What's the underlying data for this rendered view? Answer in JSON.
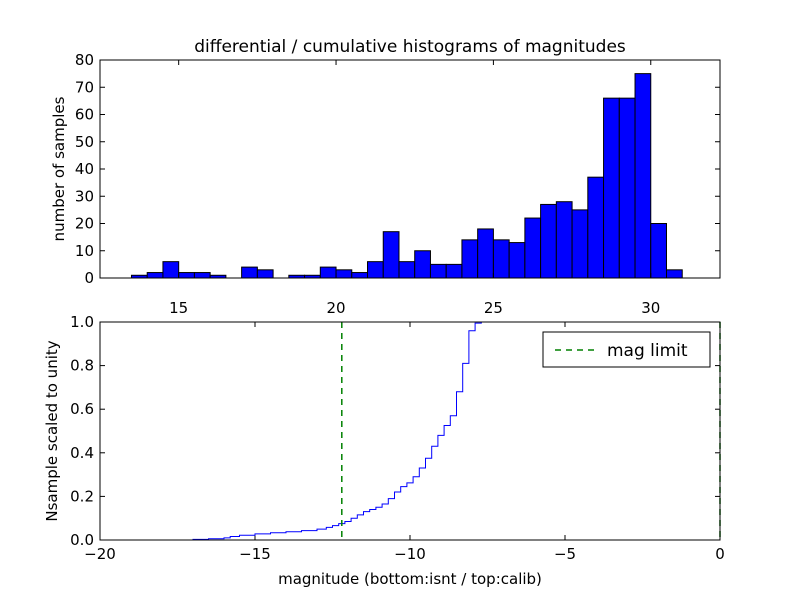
{
  "chart_data": [
    {
      "type": "bar",
      "title": "differential / cumulative histograms of magnitudes",
      "xlabel": "",
      "ylabel": "number of samples",
      "xlim": [
        12.5,
        32.2
      ],
      "ylim": [
        0,
        80
      ],
      "xticks": [
        15,
        20,
        25,
        30
      ],
      "yticks": [
        0,
        10,
        20,
        30,
        40,
        50,
        60,
        70,
        80
      ],
      "bin_width": 0.5,
      "bin_starts": [
        13.5,
        14.0,
        14.5,
        15.0,
        15.5,
        16.0,
        16.5,
        17.0,
        17.5,
        18.0,
        18.5,
        19.0,
        19.5,
        20.0,
        20.5,
        21.0,
        21.5,
        22.0,
        22.5,
        23.0,
        23.5,
        24.0,
        24.5,
        25.0,
        25.5,
        26.0,
        26.5,
        27.0,
        27.5,
        28.0,
        28.5,
        29.0,
        29.5,
        30.0,
        30.5
      ],
      "values": [
        1,
        2,
        6,
        2,
        2,
        1,
        0,
        4,
        3,
        0,
        1,
        1,
        4,
        3,
        2,
        6,
        17,
        6,
        10,
        5,
        5,
        14,
        18,
        14,
        13,
        22,
        27,
        28,
        25,
        37,
        66,
        66,
        75,
        20,
        3
      ],
      "bar_color": "#0000ff",
      "grid": false
    },
    {
      "type": "line",
      "xlabel": "magnitude (bottom:isnt / top:calib)",
      "ylabel": "Nsample scaled to unity",
      "xlim": [
        -20,
        0
      ],
      "ylim": [
        0,
        1.0
      ],
      "xticks": [
        -20,
        -15,
        -10,
        -5,
        0
      ],
      "xtick_labels": [
        "−20",
        "−15",
        "−10",
        "−5",
        "0"
      ],
      "yticks": [
        0.0,
        0.2,
        0.4,
        0.6,
        0.8,
        1.0
      ],
      "ytick_labels": [
        "0.0",
        "0.2",
        "0.4",
        "0.6",
        "0.8",
        "1.0"
      ],
      "step_x": [
        -18.5,
        -17.0,
        -16.5,
        -16.0,
        -15.8,
        -15.5,
        -15.0,
        -14.5,
        -14.0,
        -13.5,
        -13.0,
        -12.7,
        -12.5,
        -12.3,
        -12.1,
        -11.9,
        -11.7,
        -11.5,
        -11.3,
        -11.1,
        -10.9,
        -10.7,
        -10.5,
        -10.3,
        -10.1,
        -9.9,
        -9.7,
        -9.5,
        -9.3,
        -9.1,
        -8.9,
        -8.7,
        -8.5,
        -8.3,
        -8.1,
        -7.9,
        -7.7
      ],
      "step_y": [
        0.0,
        0.003,
        0.006,
        0.01,
        0.016,
        0.022,
        0.028,
        0.033,
        0.038,
        0.043,
        0.05,
        0.058,
        0.066,
        0.075,
        0.085,
        0.1,
        0.115,
        0.13,
        0.14,
        0.15,
        0.165,
        0.19,
        0.22,
        0.245,
        0.262,
        0.29,
        0.33,
        0.375,
        0.43,
        0.48,
        0.525,
        0.57,
        0.68,
        0.81,
        0.96,
        0.995,
        1.0
      ],
      "series": [
        {
          "name": "",
          "color": "#0000ff",
          "style": "solid-step"
        },
        {
          "name": "mag limit",
          "color": "#008000",
          "style": "dashed",
          "x": -12.2
        }
      ],
      "right_edge_color": "#008000",
      "legend": {
        "placement": "top-right"
      },
      "grid": false
    }
  ]
}
